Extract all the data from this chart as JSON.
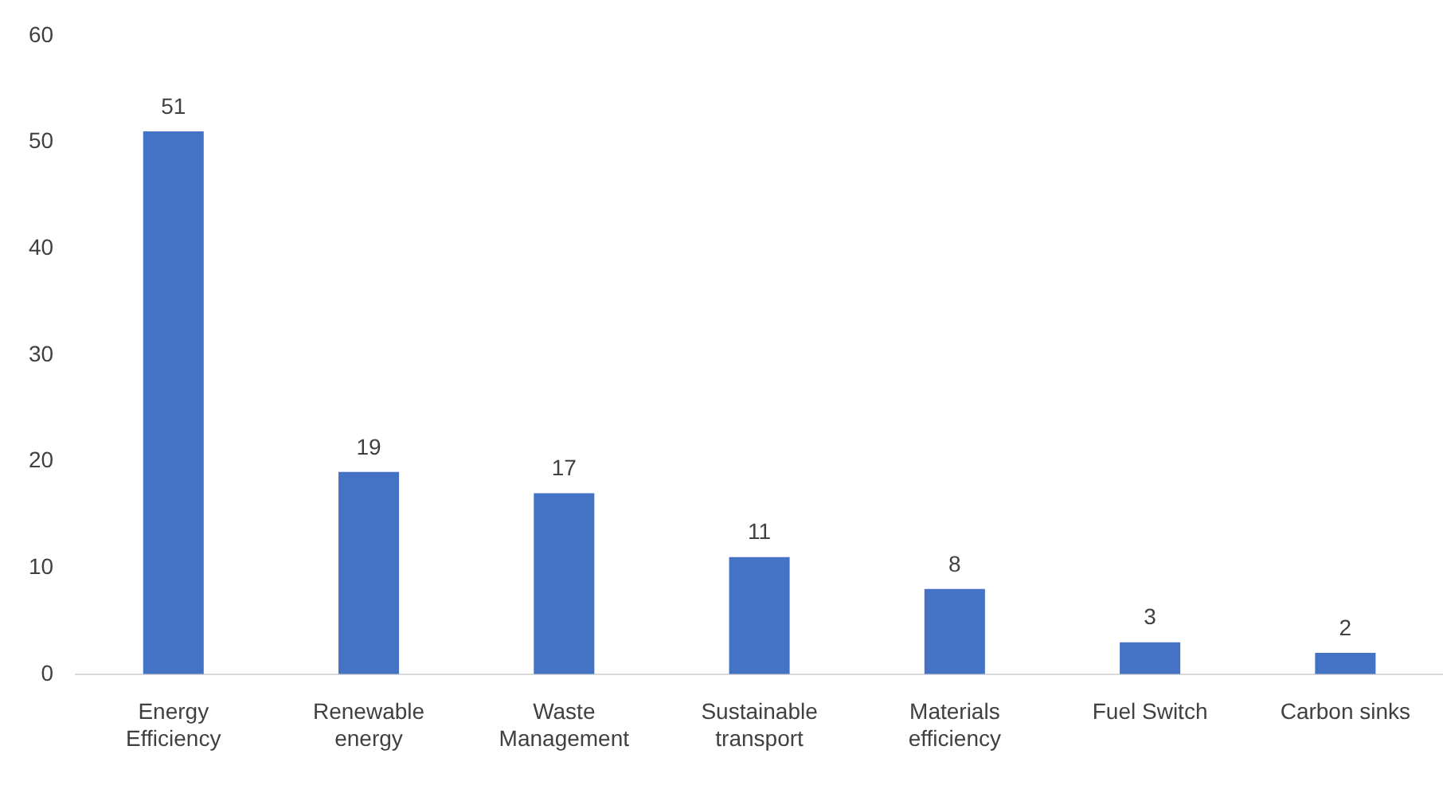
{
  "chart_data": {
    "type": "bar",
    "categories": [
      "Energy Efficiency",
      "Renewable energy",
      "Waste Management",
      "Sustainable transport",
      "Materials efficiency",
      "Fuel Switch",
      "Carbon sinks"
    ],
    "values": [
      51,
      19,
      17,
      11,
      8,
      3,
      2
    ],
    "color": "#4472c4",
    "ylim": [
      0,
      60
    ],
    "yticks": [
      0,
      10,
      20,
      30,
      40,
      50,
      60
    ],
    "grid": false,
    "legend": false,
    "data_labels": true
  }
}
